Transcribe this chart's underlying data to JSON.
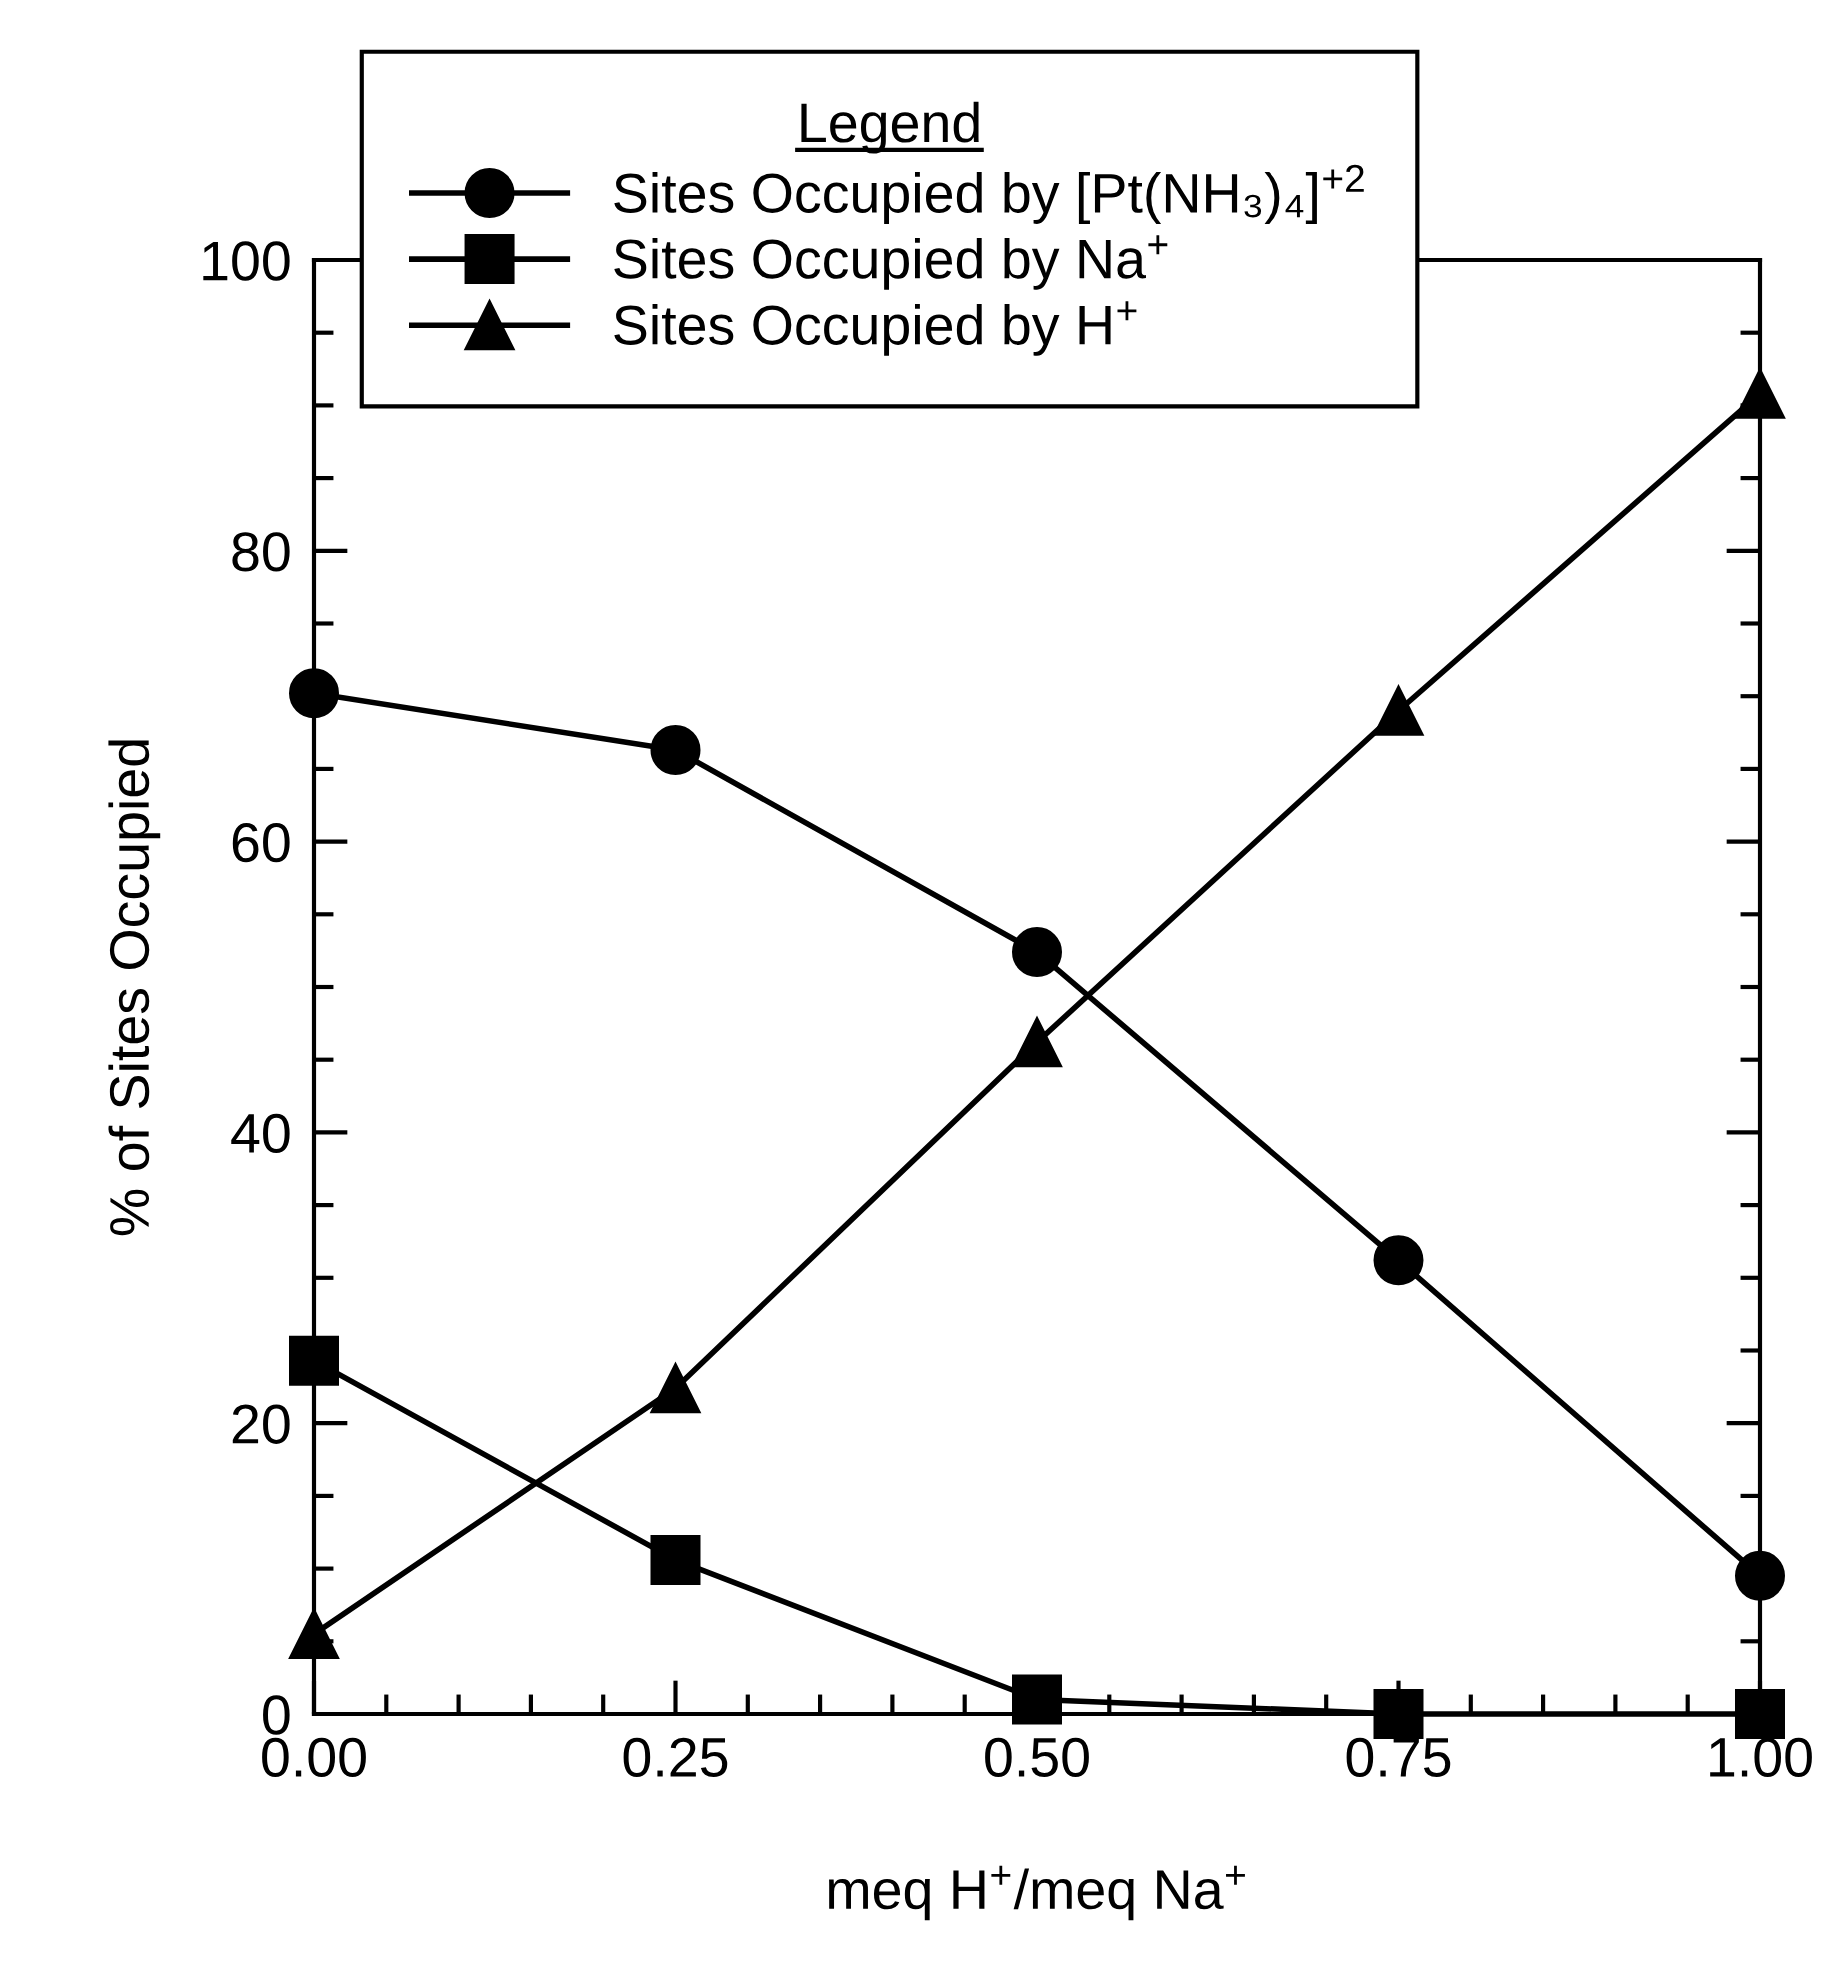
{
  "chart_data": {
    "type": "line",
    "xlabel": "meq H$^{+}$/meq Na$^{+}$",
    "ylabel": "% of Sites Occupied",
    "legend_title": "Legend",
    "x": [
      0,
      0.25,
      0.5,
      0.75,
      1.0
    ],
    "series": [
      {
        "name": "Sites Occupied by [Pt(NH₃)₄]$^{+2}$",
        "color": "#000000",
        "marker": "circle",
        "values": [
          70.2,
          66.3,
          52.4,
          31.2,
          9.5
        ]
      },
      {
        "name": "Sites Occupied by Na$^{+}$",
        "color": "#000000",
        "marker": "square",
        "values": [
          24.3,
          10.6,
          1.0,
          0,
          0
        ]
      },
      {
        "name": "Sites Occupied by H$^{+}$",
        "color": "#000000",
        "marker": "triangle",
        "values": [
          5.5,
          22.4,
          46.2,
          69.0,
          90.8
        ]
      }
    ],
    "xlim": [
      0,
      1.0
    ],
    "ylim": [
      0,
      100
    ],
    "xticks": [
      {
        "value": 0,
        "label": "0.00"
      },
      {
        "value": 0.25,
        "label": "0.25"
      },
      {
        "value": 0.5,
        "label": "0.50"
      },
      {
        "value": 0.75,
        "label": "0.75"
      },
      {
        "value": 1.0,
        "label": "1.00"
      }
    ],
    "yticks": [
      0,
      20,
      40,
      60,
      80,
      100
    ],
    "line_style": "solid",
    "grid": false,
    "legend": "top"
  }
}
